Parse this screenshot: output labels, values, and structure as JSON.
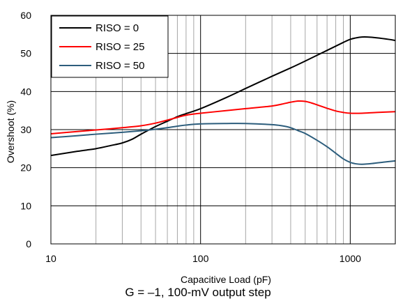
{
  "chart_data": {
    "type": "line",
    "xlabel": "Capacitive Load (pF)",
    "ylabel": "Overshoot (%)",
    "x_scale": "log",
    "xlim": [
      10,
      2000
    ],
    "ylim": [
      0,
      60
    ],
    "x_ticks": [
      10,
      100,
      1000
    ],
    "x_tick_labels": [
      "10",
      "100",
      "1000"
    ],
    "y_ticks": [
      0,
      10,
      20,
      30,
      40,
      50,
      60
    ],
    "y_tick_labels": [
      "0",
      "10",
      "20",
      "30",
      "40",
      "50",
      "60"
    ],
    "grid": true,
    "legend_position": "top-left",
    "series": [
      {
        "name": "RISO = 0",
        "color": "#000000",
        "x": [
          10,
          15,
          20,
          25,
          30,
          35,
          40,
          50,
          60,
          70,
          80,
          100,
          150,
          200,
          300,
          400,
          500,
          700,
          900,
          1000,
          1100,
          1200,
          1300,
          1500,
          1800,
          2000
        ],
        "y": [
          23.2,
          24.3,
          25.0,
          25.8,
          26.5,
          27.5,
          28.8,
          30.8,
          32.2,
          33.4,
          34.2,
          35.5,
          38.5,
          40.8,
          44.0,
          46.2,
          48.0,
          50.8,
          52.9,
          53.7,
          54.1,
          54.3,
          54.3,
          54.1,
          53.7,
          53.4
        ]
      },
      {
        "name": "RISO = 25",
        "color": "#ff0000",
        "x": [
          10,
          15,
          20,
          30,
          40,
          50,
          60,
          70,
          80,
          100,
          150,
          200,
          300,
          350,
          400,
          450,
          500,
          550,
          600,
          700,
          800,
          900,
          1000,
          1200,
          1500,
          2000
        ],
        "y": [
          28.9,
          29.5,
          29.9,
          30.5,
          31.0,
          31.7,
          32.5,
          33.2,
          33.8,
          34.3,
          35.0,
          35.5,
          36.2,
          36.7,
          37.2,
          37.5,
          37.4,
          37.0,
          36.5,
          35.6,
          34.9,
          34.5,
          34.3,
          34.3,
          34.5,
          34.7
        ]
      },
      {
        "name": "RISO = 50",
        "color": "#2c5d7c",
        "x": [
          10,
          15,
          20,
          30,
          40,
          50,
          60,
          70,
          80,
          100,
          150,
          200,
          300,
          350,
          400,
          450,
          500,
          600,
          700,
          800,
          900,
          1000,
          1100,
          1200,
          1400,
          1700,
          2000
        ],
        "y": [
          27.9,
          28.4,
          28.8,
          29.3,
          29.7,
          30.1,
          30.5,
          30.9,
          31.2,
          31.5,
          31.6,
          31.6,
          31.3,
          31.0,
          30.5,
          29.7,
          29.0,
          27.2,
          25.5,
          23.8,
          22.3,
          21.4,
          21.0,
          20.9,
          21.1,
          21.5,
          21.8
        ]
      }
    ]
  },
  "caption": "G = –1, 100-mV output step"
}
